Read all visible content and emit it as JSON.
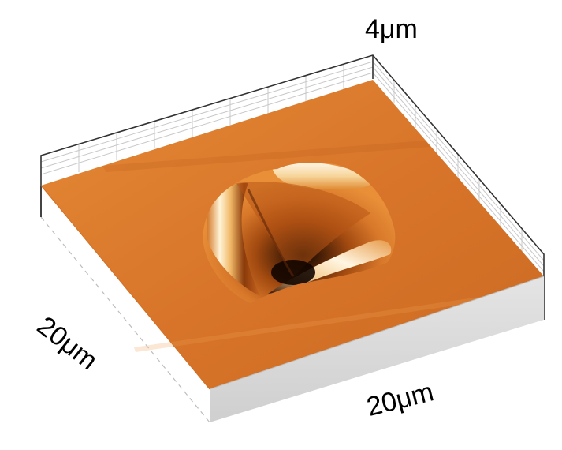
{
  "figure": {
    "z_axis_label": "4μm",
    "y_axis_label": "20μm",
    "x_axis_label": "20μm",
    "colors": {
      "surface_base": "#d8752a",
      "surface_light": "#e58c34",
      "surface_dark": "#c4621a",
      "pit_shadow": "#1a0a00",
      "pit_highlight": "#fff5dc",
      "side_wall": "#d6d6d6",
      "frame_line": "#333333",
      "grid_line": "#bdbdbd"
    }
  }
}
